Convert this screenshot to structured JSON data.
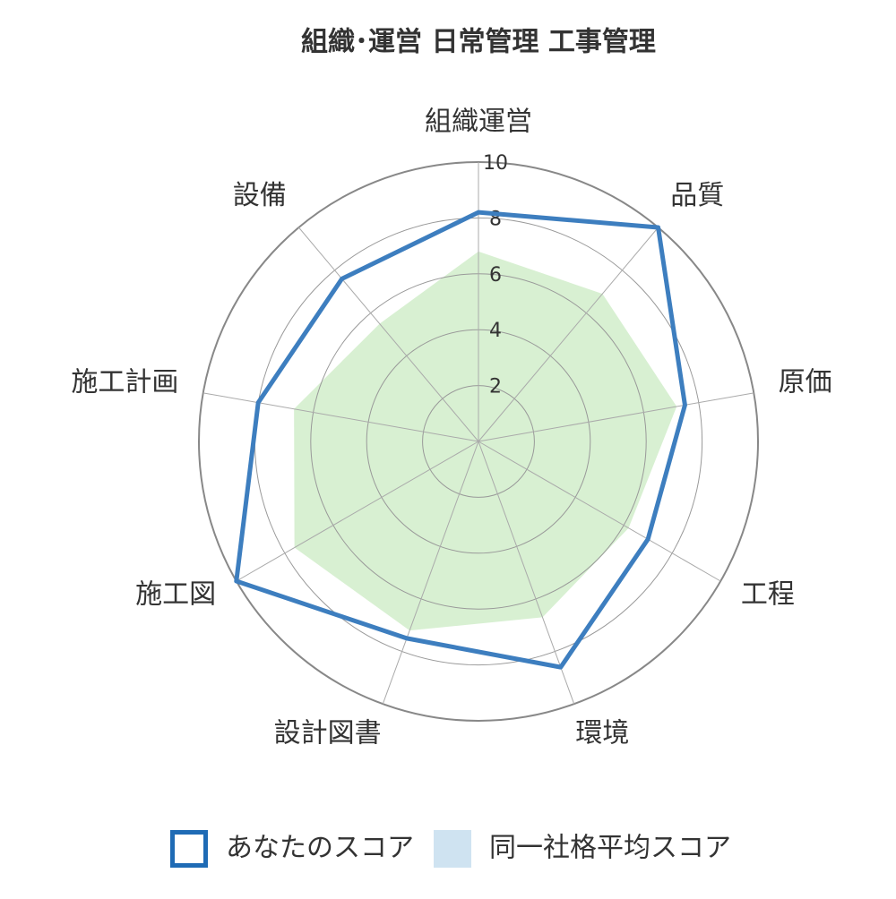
{
  "chart_data": {
    "type": "radar",
    "title": "組織･運営 日常管理  工事管理",
    "categories": [
      "組織運営",
      "品質",
      "原価",
      "工程",
      "環境",
      "設計図書",
      "施工図",
      "施工計画",
      "設備"
    ],
    "series": [
      {
        "name": "あなたのスコア",
        "color": "#3d7ebf",
        "legend_color": "#1f6bb5",
        "fill": false,
        "values": [
          8.2,
          10,
          7.5,
          7.0,
          8.6,
          7.5,
          10,
          8.0,
          7.6
        ]
      },
      {
        "name": "同一社格平均スコア",
        "color": "#d8f0d2",
        "legend_color": "#cfe3f1",
        "fill": true,
        "values": [
          6.8,
          6.9,
          7.2,
          6.2,
          6.7,
          7.2,
          7.6,
          6.7,
          5.5
        ]
      }
    ],
    "rlim": [
      0,
      10
    ],
    "rticks": [
      2,
      4,
      6,
      8,
      10
    ],
    "grid": true,
    "legend": "bottom"
  }
}
